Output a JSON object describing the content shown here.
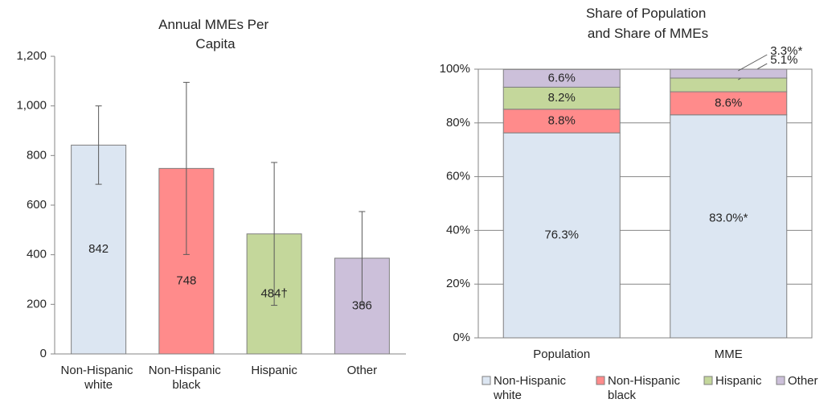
{
  "chart_data": [
    {
      "type": "bar",
      "title": "Annual MMEs Per Capita",
      "categories": [
        "Non-Hispanic white",
        "Non-Hispanic black",
        "Hispanic",
        "Other"
      ],
      "values": [
        842,
        748,
        484,
        386
      ],
      "value_labels": [
        "842",
        "748",
        "484†",
        "386"
      ],
      "errors": [
        158,
        347,
        288,
        188
      ],
      "colors": [
        "#dce6f2",
        "#ff8b8b",
        "#c4d79b",
        "#ccc0da"
      ],
      "ylim": [
        0,
        1200
      ],
      "yticks": [
        0,
        200,
        400,
        600,
        800,
        {
          "value": 1000,
          "label": "1,000"
        },
        {
          "value": 1200,
          "label": "1,200"
        }
      ],
      "grid": false
    },
    {
      "type": "stacked_bar",
      "title": "Share of Population and Share of MMEs",
      "categories": [
        "Population",
        "MME"
      ],
      "series": [
        {
          "name": "Non-Hispanic white",
          "color": "#dce6f2",
          "values": [
            76.3,
            83.0
          ],
          "value_labels": [
            "76.3%",
            "83.0%*"
          ]
        },
        {
          "name": "Non-Hispanic black",
          "color": "#ff8b8b",
          "values": [
            8.8,
            8.6
          ],
          "value_labels": [
            "8.8%",
            "8.6%"
          ]
        },
        {
          "name": "Hispanic",
          "color": "#c4d79b",
          "values": [
            8.2,
            5.1
          ],
          "value_labels": [
            "8.2%",
            "5.1%"
          ]
        },
        {
          "name": "Other",
          "color": "#ccc0da",
          "values": [
            6.6,
            3.3
          ],
          "value_labels": [
            "6.6%",
            "3.3%*"
          ]
        }
      ],
      "ylim": [
        0,
        100
      ],
      "yticks": [
        {
          "value": 0,
          "label": "0%"
        },
        {
          "value": 20,
          "label": "20%"
        },
        {
          "value": 40,
          "label": "40%"
        },
        {
          "value": 60,
          "label": "60%"
        },
        {
          "value": 80,
          "label": "80%"
        },
        {
          "value": 100,
          "label": "100%"
        }
      ],
      "grid": true,
      "legend": "bottom"
    }
  ]
}
